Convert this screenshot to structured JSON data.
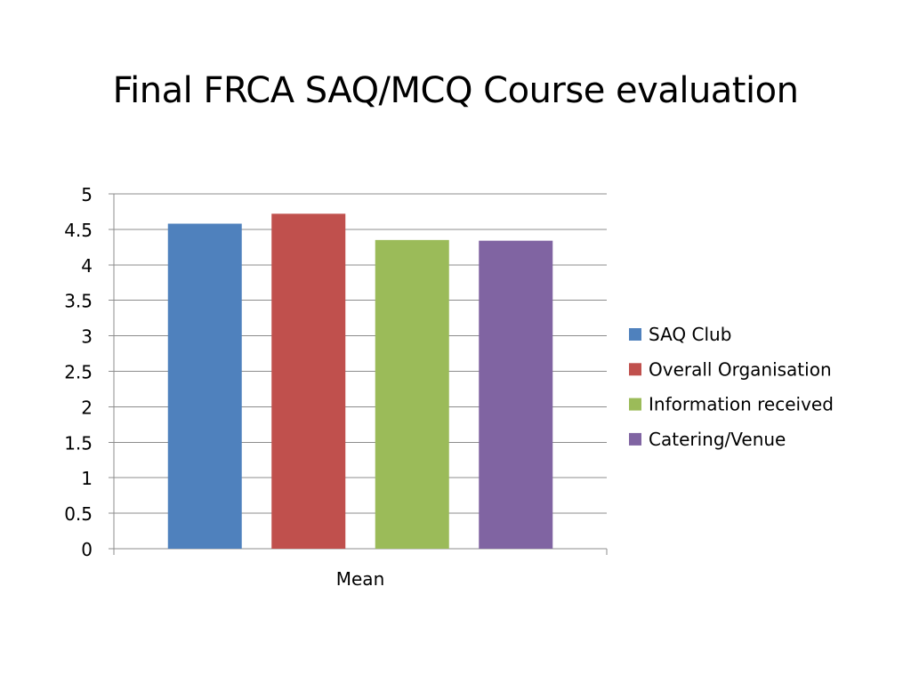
{
  "slide": {
    "title": "Final FRCA SAQ/MCQ Course evaluation"
  },
  "chart_data": {
    "type": "bar",
    "categories": [
      "Mean"
    ],
    "series": [
      {
        "name": "SAQ Club",
        "values": [
          4.58
        ],
        "color": "#4f81bd"
      },
      {
        "name": "Overall Organisation",
        "values": [
          4.72
        ],
        "color": "#c0504d"
      },
      {
        "name": "Information received",
        "values": [
          4.35
        ],
        "color": "#9bbb59"
      },
      {
        "name": "Catering/Venue",
        "values": [
          4.34
        ],
        "color": "#8064a2"
      }
    ],
    "title": "",
    "xlabel": "",
    "ylabel": "",
    "ylim": [
      0,
      5
    ],
    "yticks": [
      "0",
      "0.5",
      "1",
      "1.5",
      "2",
      "2.5",
      "3",
      "3.5",
      "4",
      "4.5",
      "5"
    ],
    "grid": true,
    "legend": "right"
  }
}
